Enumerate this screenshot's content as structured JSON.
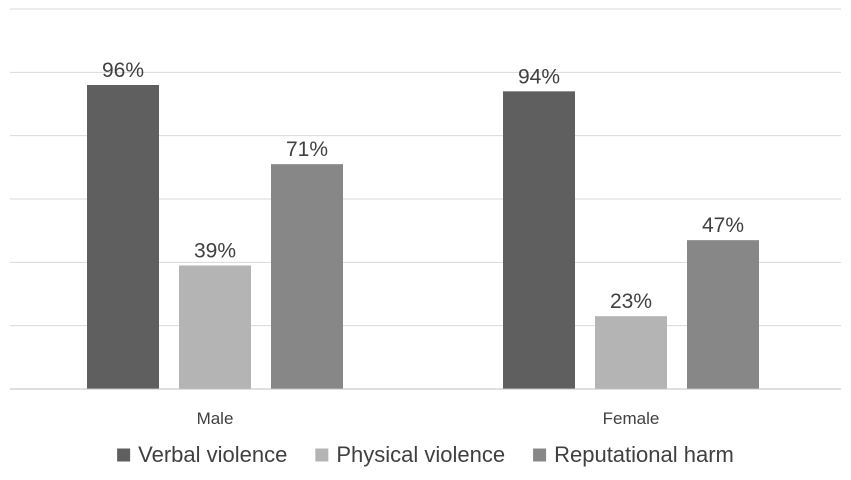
{
  "chart_data": {
    "type": "bar",
    "categories": [
      "Male",
      "Female"
    ],
    "series": [
      {
        "name": "Verbal violence",
        "values": [
          96,
          94
        ],
        "color": "#5f5f5f"
      },
      {
        "name": "Physical violence",
        "values": [
          39,
          23
        ],
        "color": "#b4b4b4"
      },
      {
        "name": "Reputational harm",
        "values": [
          71,
          47
        ],
        "color": "#878787"
      }
    ],
    "data_labels": [
      [
        "96%",
        "94%"
      ],
      [
        "39%",
        "23%"
      ],
      [
        "71%",
        "47%"
      ]
    ],
    "ylim": [
      0,
      120
    ],
    "y_tick_step": 20,
    "y_tick_labels_shown": false,
    "grid": true,
    "legend_position": "bottom",
    "title": "",
    "xlabel": "",
    "ylabel": ""
  }
}
